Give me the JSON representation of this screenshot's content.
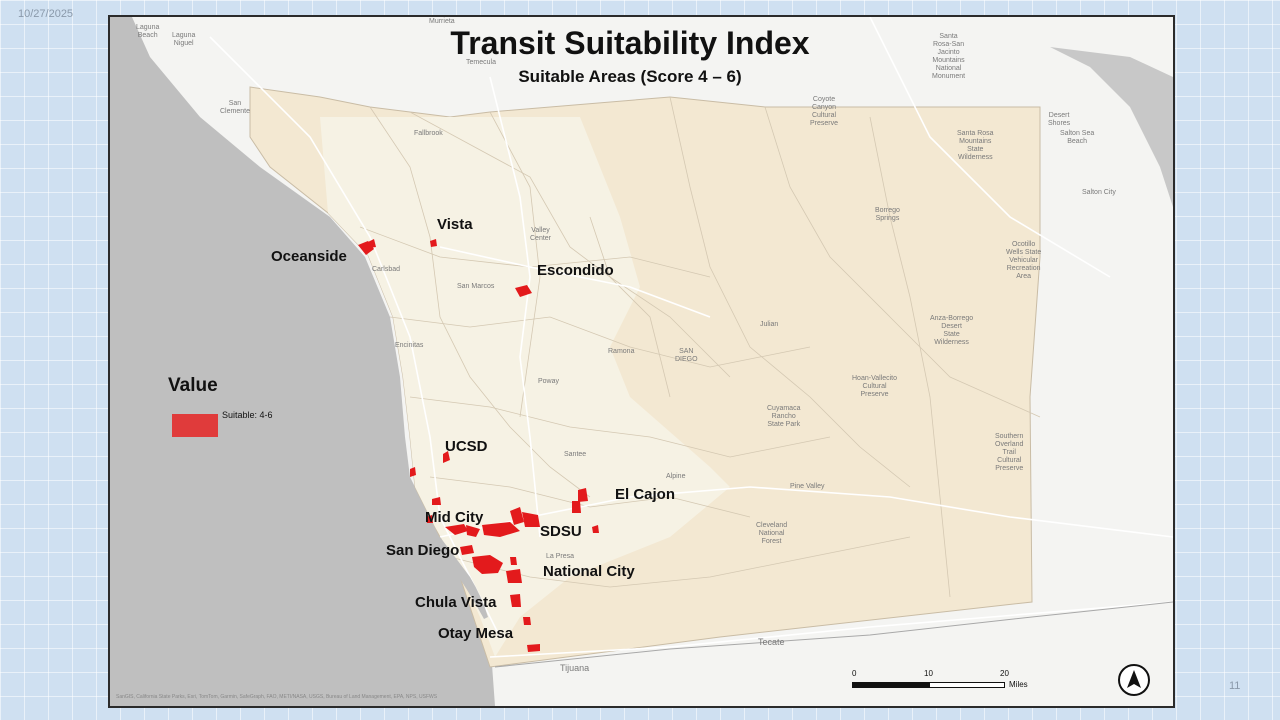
{
  "slide": {
    "date": "10/27/2025",
    "page_number": "11"
  },
  "map": {
    "title": "Transit Suitability Index",
    "subtitle": "Suitable Areas (Score 4 – 6)",
    "city_labels": {
      "vista": "Vista",
      "oceanside": "Oceanside",
      "escondido": "Escondido",
      "ucsd": "UCSD",
      "el_cajon": "El Cajon",
      "mid_city": "Mid City",
      "sdsu": "SDSU",
      "san_diego": "San Diego",
      "national_city": "National City",
      "chula_vista": "Chula Vista",
      "otay_mesa": "Otay Mesa"
    },
    "basemap_labels": {
      "laguna_beach": "Laguna\nBeach",
      "laguna_niguel": "Laguna\nNiguel",
      "murrieta": "Murrieta",
      "temecula": "Temecula",
      "san_clemente": "San\nClemente",
      "santa_rosa_san_jacinto": "Santa\nRosa-San\nJacinto\nMountains\nNational\nMonument",
      "coyote_canyon": "Coyote\nCanyon\nCultural\nPreserve",
      "desert_shores": "Desert\nShores",
      "salton_sea_beach": "Salton Sea\nBeach",
      "salton_city": "Salton City",
      "fallbrook": "Fallbrook",
      "santa_rosa_mountains": "Santa Rosa\nMountains\nState\nWilderness",
      "borrego_springs": "Borrego\nSprings",
      "valley_center": "Valley\nCenter",
      "carlsbad": "Carlsbad",
      "san_marcos": "San Marcos",
      "ocotillo_wells": "Ocotillo\nWells State\nVehicular\nRecreation\nArea",
      "julian": "Julian",
      "anza_borrego": "Anza-Borrego\nDesert\nState\nWilderness",
      "encinitas": "Encinitas",
      "ramona": "Ramona",
      "san_diego_county": "SAN\nDIEGO",
      "poway": "Poway",
      "hoan_valletito": "Hoan-Vallecito\nCultural\nPreserve",
      "cuyamaca": "Cuyamaca\nRancho\nState Park",
      "southern_overland": "Southern\nOverland\nTrail\nCultural\nPreserve",
      "santee": "Santee",
      "alpine": "Alpine",
      "pine_valley": "Pine Valley",
      "cleveland": "Cleveland\nNational\nForest",
      "la_presa": "La Presa",
      "tecate": "Tecate",
      "tijuana": "Tijuana"
    },
    "legend": {
      "title": "Value",
      "entries": [
        {
          "label": "Suitable: 4-6",
          "color": "#e03b3b"
        }
      ]
    },
    "scale_bar": {
      "ticks": [
        "0",
        "10",
        "20"
      ],
      "unit": "Miles"
    },
    "attribution": "SanGIS, California State Parks, Esri, TomTom, Garmin, SafeGraph, FAO, METI/NASA, USGS, Bureau of Land Management, EPA, NPS, USFWS",
    "colors": {
      "suitable": "#e31a1c",
      "county_fill": "#f3e8d2",
      "ocean": "#bfbfbf",
      "land": "#f4f4f2"
    },
    "north_arrow_icon": "north-arrow-icon"
  }
}
